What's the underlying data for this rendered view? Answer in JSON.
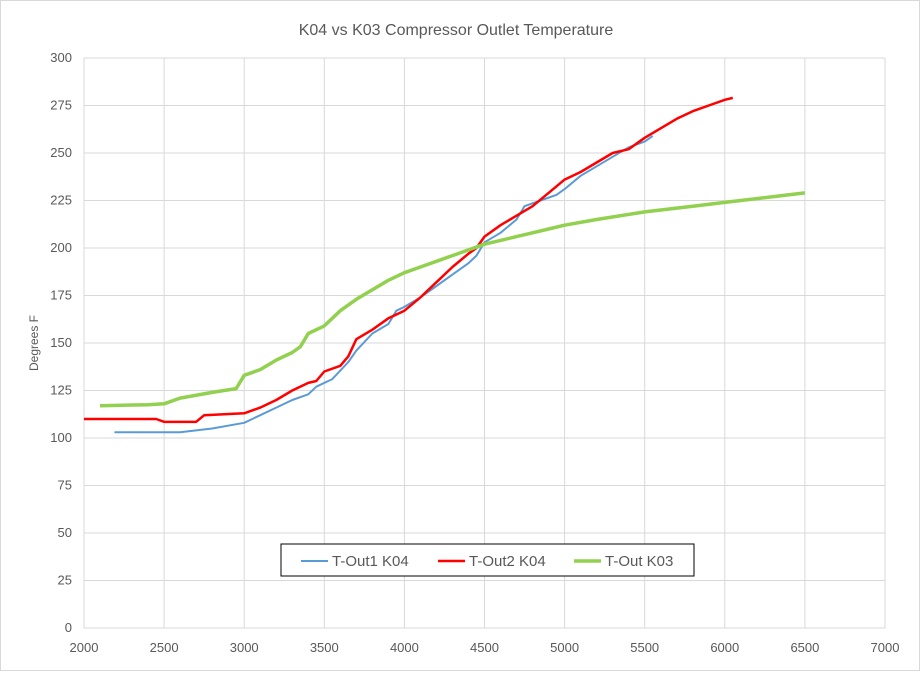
{
  "chart_data": {
    "type": "line",
    "title": "K04 vs K03 Compressor Outlet Temperature",
    "xlabel": "",
    "ylabel": "Degrees F",
    "xlim": [
      2000,
      7000
    ],
    "ylim": [
      0,
      300
    ],
    "xticks": [
      2000,
      2500,
      3000,
      3500,
      4000,
      4500,
      5000,
      5500,
      6000,
      6500,
      7000
    ],
    "yticks": [
      0,
      25,
      50,
      75,
      100,
      125,
      150,
      175,
      200,
      225,
      250,
      275,
      300
    ],
    "grid": true,
    "legend_position": "bottom-center",
    "series": [
      {
        "name": "T-Out1 K04",
        "color": "#5B9BD5",
        "x": [
          2190,
          2600,
          2800,
          3000,
          3100,
          3200,
          3300,
          3400,
          3450,
          3550,
          3650,
          3700,
          3800,
          3900,
          3950,
          4000,
          4100,
          4200,
          4300,
          4400,
          4450,
          4500,
          4600,
          4700,
          4750,
          4850,
          4950,
          5000,
          5100,
          5200,
          5300,
          5400,
          5500,
          5550
        ],
        "y": [
          103,
          103,
          105,
          108,
          112,
          116,
          120,
          123,
          127,
          131,
          140,
          146,
          155,
          160,
          167,
          169,
          174,
          180,
          186,
          192,
          196,
          203,
          208,
          215,
          222,
          225,
          228,
          231,
          238,
          243,
          248,
          253,
          256,
          259
        ]
      },
      {
        "name": "T-Out2 K04",
        "color": "#FF0000",
        "x": [
          2000,
          2450,
          2500,
          2700,
          2750,
          3000,
          3100,
          3200,
          3300,
          3400,
          3450,
          3500,
          3600,
          3650,
          3700,
          3800,
          3900,
          4000,
          4100,
          4200,
          4300,
          4400,
          4450,
          4500,
          4600,
          4700,
          4800,
          4900,
          5000,
          5100,
          5200,
          5300,
          5400,
          5500,
          5600,
          5700,
          5800,
          5900,
          6000,
          6050
        ],
        "y": [
          110,
          110,
          108.5,
          108.5,
          112,
          113,
          116,
          120,
          125,
          129,
          130,
          135,
          138,
          143,
          152,
          157,
          163,
          167,
          174,
          182,
          190,
          197,
          200,
          206,
          212,
          217,
          222,
          229,
          236,
          240,
          245,
          250,
          252,
          258,
          263,
          268,
          272,
          275,
          278,
          279
        ]
      },
      {
        "name": "T-Out K03",
        "color": "#92D050",
        "x": [
          2100,
          2400,
          2500,
          2600,
          2800,
          2950,
          3000,
          3100,
          3200,
          3300,
          3350,
          3400,
          3500,
          3600,
          3700,
          3800,
          3900,
          4000,
          4100,
          4200,
          4300,
          4400,
          4500,
          4600,
          4700,
          4800,
          4900,
          5000,
          5200,
          5500,
          5800,
          6000,
          6200,
          6500
        ],
        "y": [
          117,
          117.5,
          118,
          121,
          124,
          126,
          133,
          136,
          141,
          145,
          148,
          155,
          159,
          167,
          173,
          178,
          183,
          187,
          190,
          193,
          196,
          199,
          202,
          204,
          206,
          208,
          210,
          212,
          215,
          219,
          222,
          224,
          226,
          229
        ]
      }
    ]
  }
}
